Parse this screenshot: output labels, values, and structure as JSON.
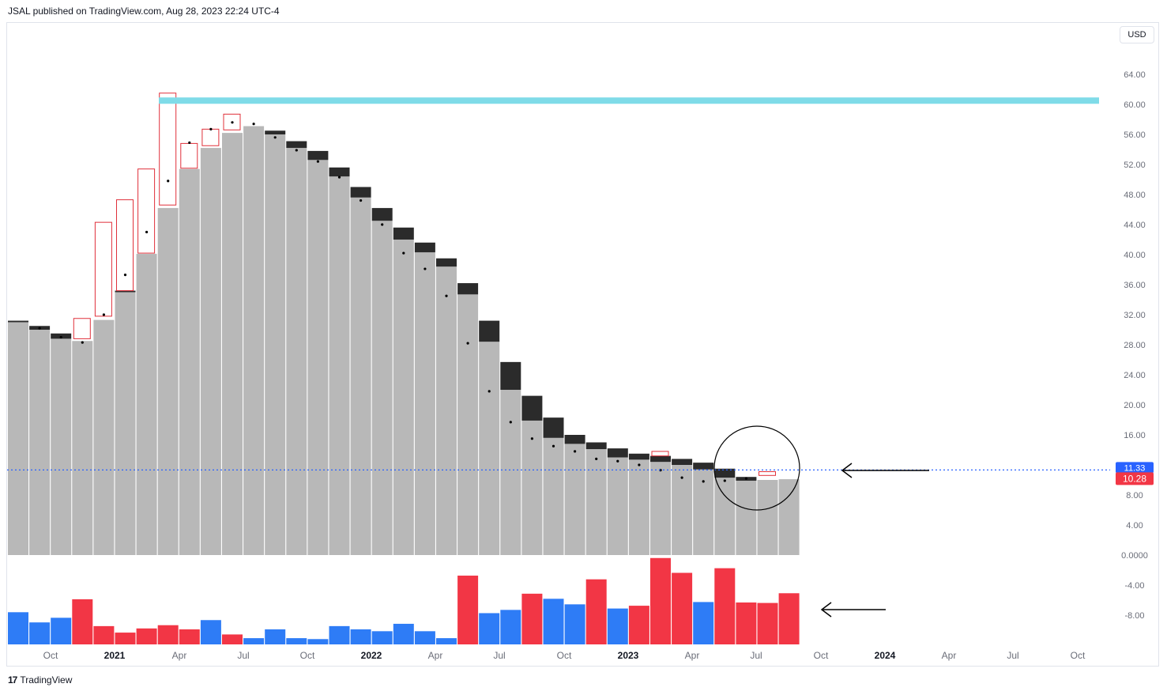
{
  "header": {
    "text": "JSAL published on TradingView.com, Aug 28, 2023 22:24 UTC-4"
  },
  "currency_button": {
    "label": "USD"
  },
  "footer": {
    "logo": "17",
    "brand": "TradingView"
  },
  "colors": {
    "price_bar": "#b8b8b8",
    "down_wick": "#2b2b2b",
    "up_box": "#e0303a",
    "hist_up": "#2e7cf6",
    "hist_down": "#f23645",
    "resistance": "#7fdbe8",
    "last_price_badge": "#f23645",
    "dotted_line": "#2962ff"
  },
  "chart_data": {
    "type": "bar",
    "title": "",
    "xlabel": "",
    "ylabel": "",
    "ylim": [
      -12,
      66
    ],
    "x_tick_labels": [
      "Oct",
      "2021",
      "Apr",
      "Jul",
      "Oct",
      "2022",
      "Apr",
      "Jul",
      "Oct",
      "2023",
      "Apr",
      "Jul",
      "Oct",
      "2024",
      "Apr",
      "Jul",
      "Oct"
    ],
    "y_tick_labels": [
      "64.00",
      "60.00",
      "56.00",
      "52.00",
      "48.00",
      "44.00",
      "40.00",
      "36.00",
      "32.00",
      "28.00",
      "24.00",
      "20.00",
      "16.00",
      "8.00",
      "4.00",
      "0.0000",
      "-4.00",
      "-8.00"
    ],
    "last_price_labels": [
      "11.33",
      "10.28"
    ],
    "resistance_level": 60.5,
    "price_series": {
      "name": "",
      "open": [
        31.2,
        30.5,
        29.5,
        28.5,
        31.3,
        35.2,
        40.1,
        46.2,
        51.4,
        54.2,
        56.2,
        57.1,
        56.5,
        55.1,
        53.8,
        51.6,
        49.0,
        46.2,
        43.6,
        41.6,
        39.5,
        36.2,
        31.2,
        25.7,
        21.2,
        18.3,
        16.0,
        15.0,
        14.2,
        13.5,
        13.2,
        12.8,
        12.3,
        11.5,
        10.4,
        10.0,
        10.1
      ],
      "close": [
        31.0,
        30.0,
        28.8,
        28.8,
        31.8,
        35.0,
        40.2,
        46.6,
        51.5,
        54.5,
        56.6,
        57.1,
        56.0,
        54.2,
        52.6,
        50.4,
        47.6,
        44.5,
        42.0,
        40.3,
        38.4,
        34.7,
        28.4,
        22.0,
        17.9,
        15.6,
        14.8,
        14.1,
        13.0,
        12.7,
        12.4,
        12.0,
        11.4,
        10.3,
        9.9,
        10.6,
        11.3
      ],
      "high": [
        31.2,
        30.5,
        29.5,
        31.5,
        44.3,
        47.3,
        51.4,
        61.5,
        54.8,
        56.7,
        58.7,
        57.3,
        56.5,
        55.1,
        53.8,
        51.6,
        49.0,
        46.2,
        43.6,
        41.6,
        39.5,
        36.2,
        31.2,
        25.7,
        21.2,
        18.3,
        16.0,
        15.0,
        14.2,
        13.5,
        13.8,
        12.8,
        12.3,
        11.5,
        10.4,
        11.1,
        11.3
      ],
      "low": [
        31.0,
        30.0,
        28.8,
        28.5,
        31.3,
        35.2,
        40.1,
        46.2,
        51.4,
        54.2,
        56.2,
        57.1,
        56.0,
        52.4,
        52.6,
        50.4,
        47.6,
        44.5,
        42.0,
        40.3,
        38.4,
        34.7,
        28.4,
        22.0,
        15.6,
        15.6,
        14.8,
        14.1,
        13.0,
        12.7,
        12.4,
        12.0,
        10.9,
        10.3,
        9.9,
        10.0,
        10.1
      ]
    },
    "dot_markers": [
      30.2,
      29.0,
      28.3,
      32.0,
      37.3,
      43.0,
      49.8,
      54.9,
      56.7,
      57.6,
      57.4,
      55.6,
      53.9,
      52.4,
      50.3,
      47.2,
      44.0,
      40.2,
      38.1,
      34.5,
      28.2,
      21.8,
      17.7,
      15.5,
      14.5,
      13.8,
      12.8,
      12.5,
      12.0,
      11.3,
      10.3,
      9.8,
      9.9,
      10.2
    ],
    "histogram": {
      "name": "",
      "values": [
        -3.0,
        -5.2,
        -4.2,
        -0.2,
        -6.0,
        -7.4,
        -6.5,
        -5.8,
        -6.7,
        -4.7,
        -7.8,
        -8.6,
        -6.7,
        -8.6,
        -8.8,
        -6.0,
        -6.7,
        -7.1,
        -5.5,
        -7.1,
        -8.6,
        4.9,
        -3.2,
        -2.5,
        1.0,
        -0.1,
        -1.3,
        4.1,
        -2.2,
        -1.6,
        8.7,
        5.5,
        -0.8,
        6.5,
        -0.9,
        -1.0,
        1.1
      ]
    }
  }
}
